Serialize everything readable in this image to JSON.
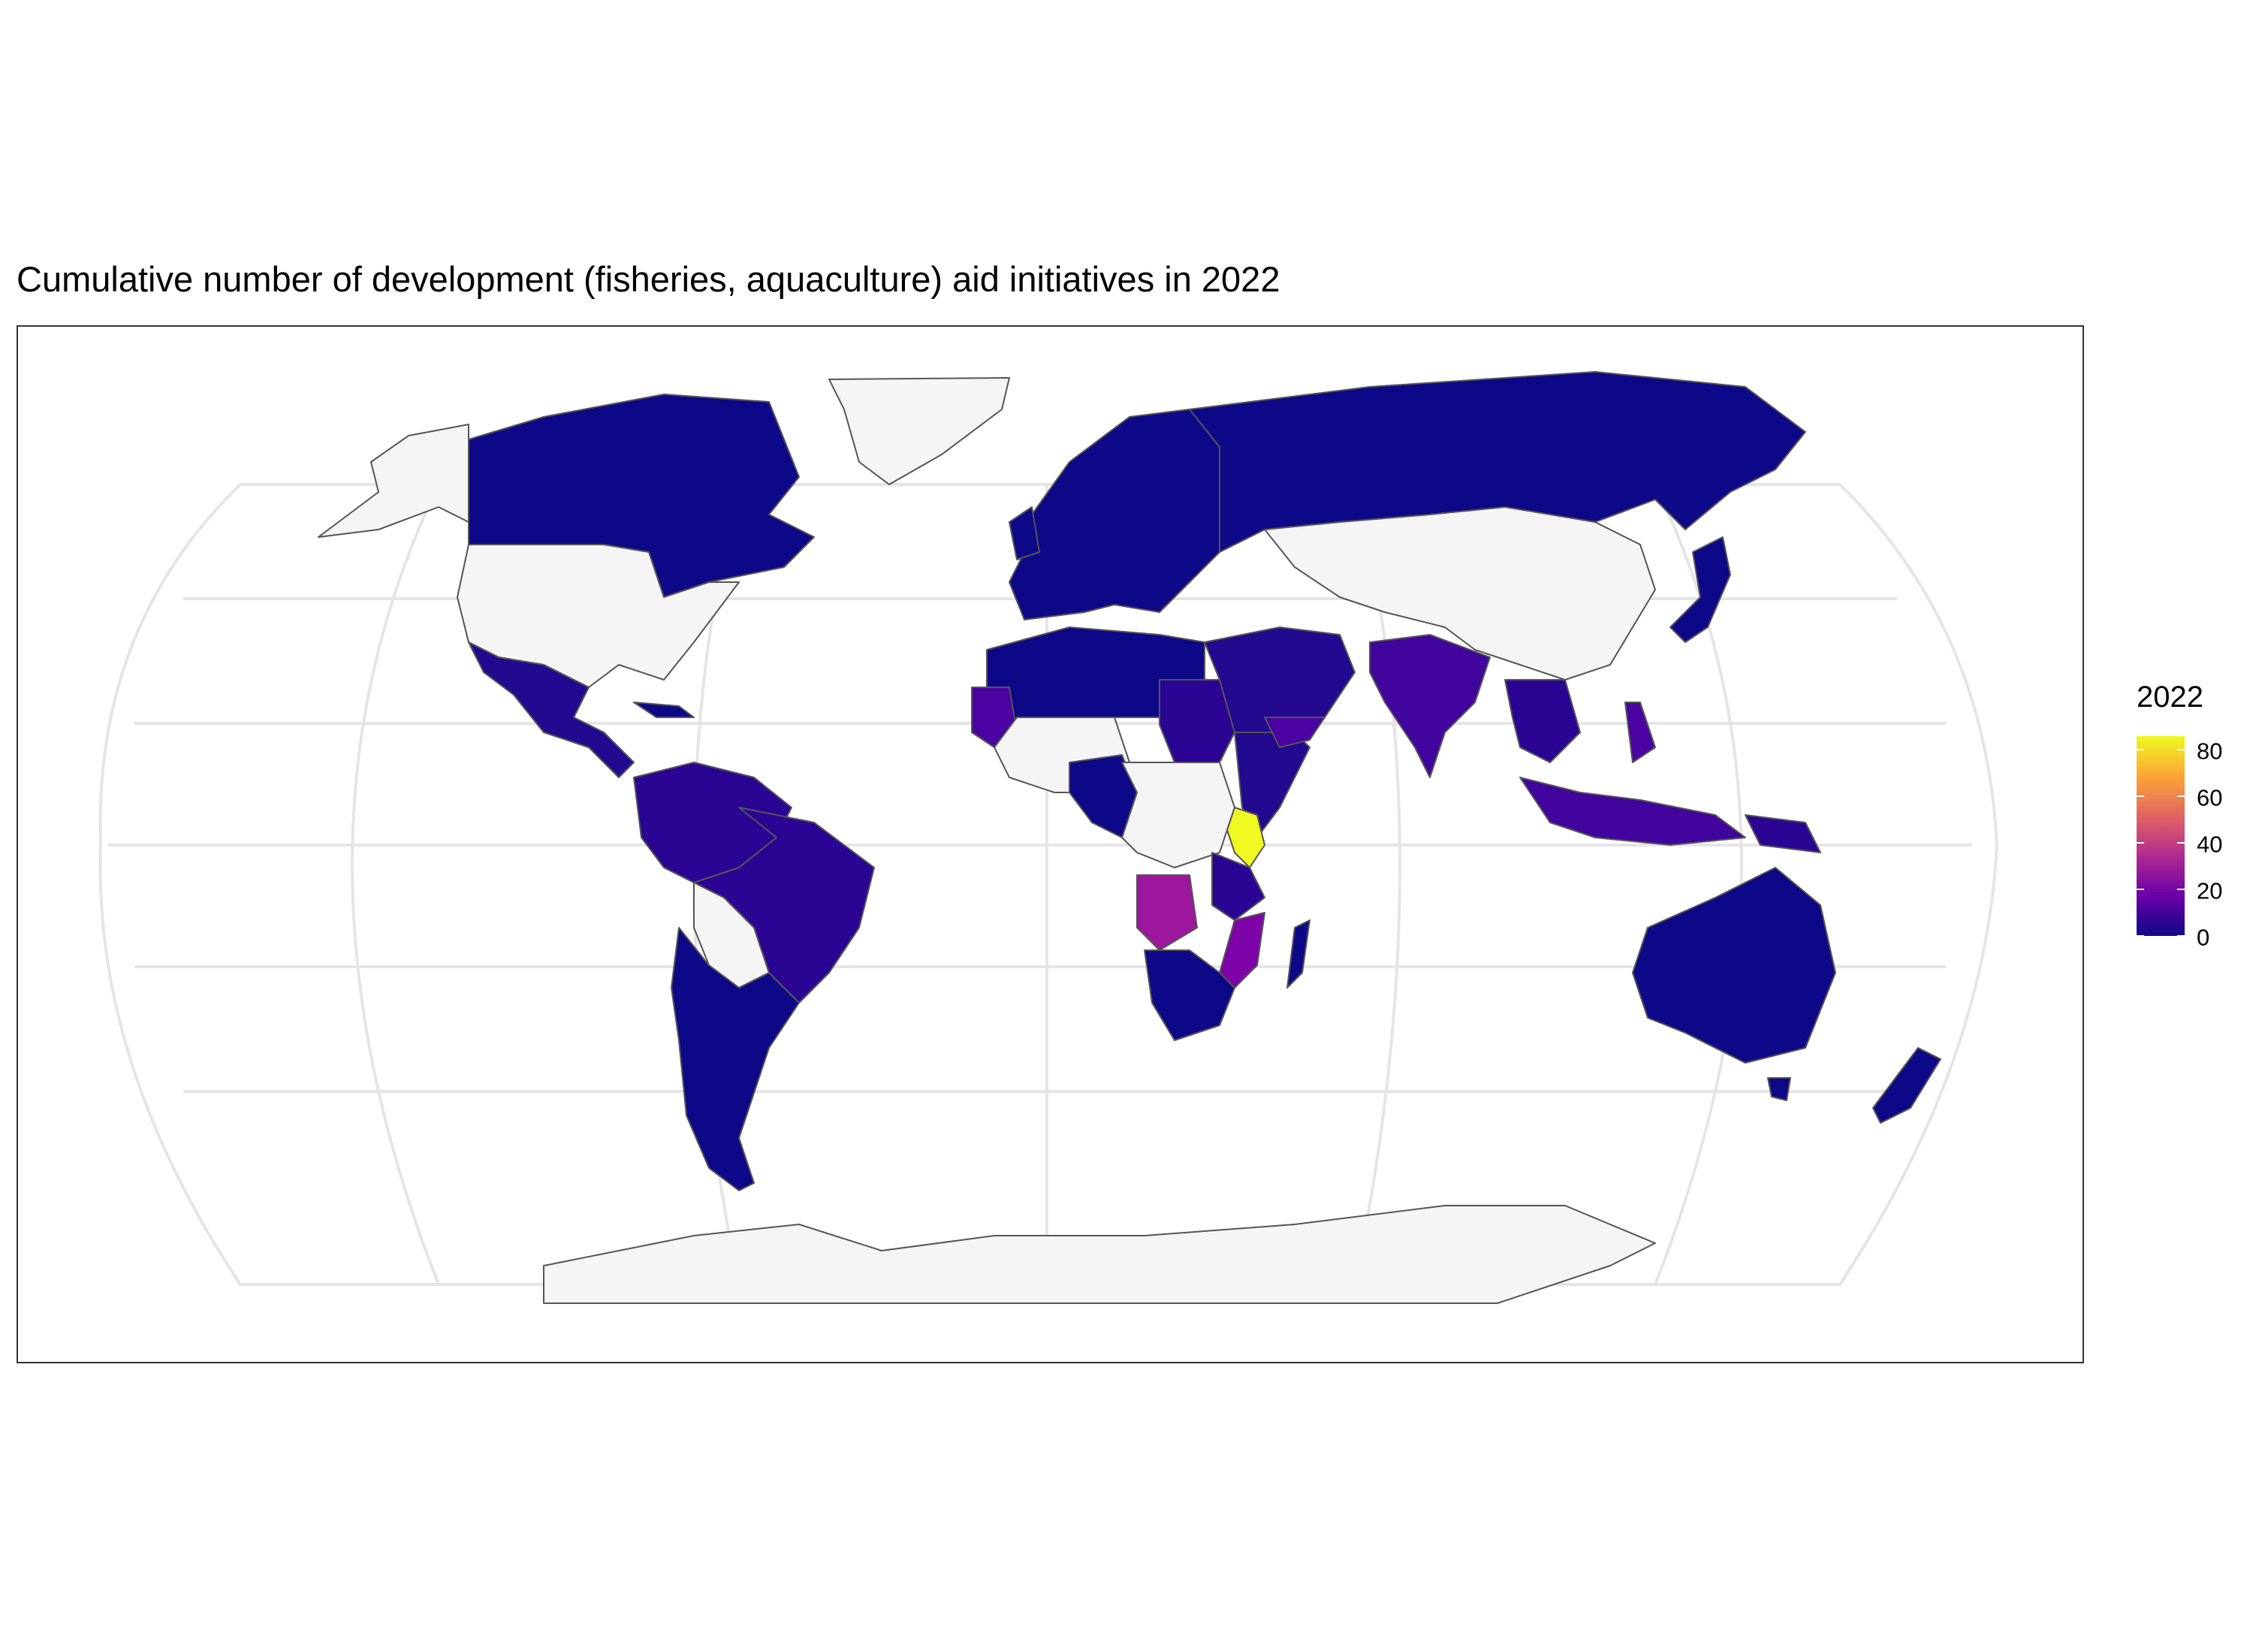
{
  "title": "Cumulative number of development (fisheries, aquaculture) aid initiatives in 2022",
  "legend": {
    "title": "2022",
    "ticks": [
      "0",
      "20",
      "40",
      "60",
      "80"
    ],
    "range": [
      0,
      86
    ],
    "palette": "plasma",
    "colors": [
      "#0d0887",
      "#6a00a8",
      "#b12a90",
      "#e16462",
      "#fca636",
      "#f0f921"
    ]
  },
  "map": {
    "projection": "robinson",
    "no_data_color": "#f5f5f5",
    "border_color": "#555555",
    "graticule_color": "#e5e5e5",
    "regions": [
      {
        "name": "Kenya",
        "value": 85
      },
      {
        "name": "Angola",
        "value": 30
      },
      {
        "name": "Mozambique",
        "value": 25
      },
      {
        "name": "Senegal",
        "value": 20
      },
      {
        "name": "Mauritania",
        "value": 15
      },
      {
        "name": "Yemen",
        "value": 15
      },
      {
        "name": "Philippines",
        "value": 15
      },
      {
        "name": "Indonesia",
        "value": 15
      },
      {
        "name": "India",
        "value": 10
      },
      {
        "name": "Brazil",
        "value": 8
      },
      {
        "name": "Sudan",
        "value": 8
      },
      {
        "name": "Tanzania",
        "value": 8
      },
      {
        "name": "Papua New Guinea",
        "value": 8
      },
      {
        "name": "Myanmar",
        "value": 10
      },
      {
        "name": "Vietnam",
        "value": 10
      },
      {
        "name": "Canada",
        "value": 2
      },
      {
        "name": "Russia",
        "value": 2
      },
      {
        "name": "Australia",
        "value": 2
      },
      {
        "name": "Mexico",
        "value": 5
      },
      {
        "name": "Argentina",
        "value": 2
      },
      {
        "name": "South Africa",
        "value": 3
      },
      {
        "name": "Namibia",
        "value": 2
      },
      {
        "name": "Madagascar",
        "value": 2
      },
      {
        "name": "Egypt",
        "value": 3
      },
      {
        "name": "Saudi Arabia",
        "value": 3
      },
      {
        "name": "Iran",
        "value": 3
      },
      {
        "name": "Algeria",
        "value": 2
      },
      {
        "name": "Libya",
        "value": 2
      },
      {
        "name": "Europe",
        "value": 2
      },
      {
        "name": "New Zealand",
        "value": 2
      }
    ]
  }
}
